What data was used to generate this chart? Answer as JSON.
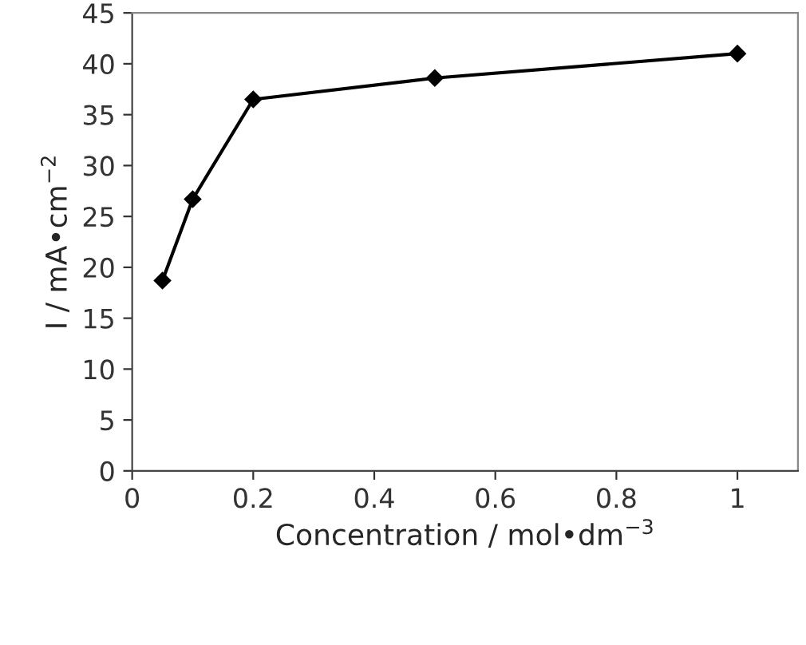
{
  "chart_data": {
    "type": "line",
    "xlabel": "Concentration / mol•dm$^{−3}$",
    "ylabel": "I / mA•cm$^{−2}$",
    "x": [
      0.05,
      0.1,
      0.2,
      0.5,
      1
    ],
    "series": [
      {
        "color": "#000000",
        "values": [
          18.7,
          26.7,
          36.5,
          38.6,
          41.0
        ]
      }
    ],
    "xlim": [
      0,
      1.1
    ],
    "xticks": [
      0,
      0.2,
      0.4,
      0.6,
      0.8,
      1
    ],
    "ylim": [
      0,
      45
    ],
    "yticks": [
      0,
      5,
      10,
      15,
      20,
      25,
      30,
      35,
      40,
      45
    ],
    "grid": false,
    "marker": "diamond",
    "line_style": "solid"
  }
}
